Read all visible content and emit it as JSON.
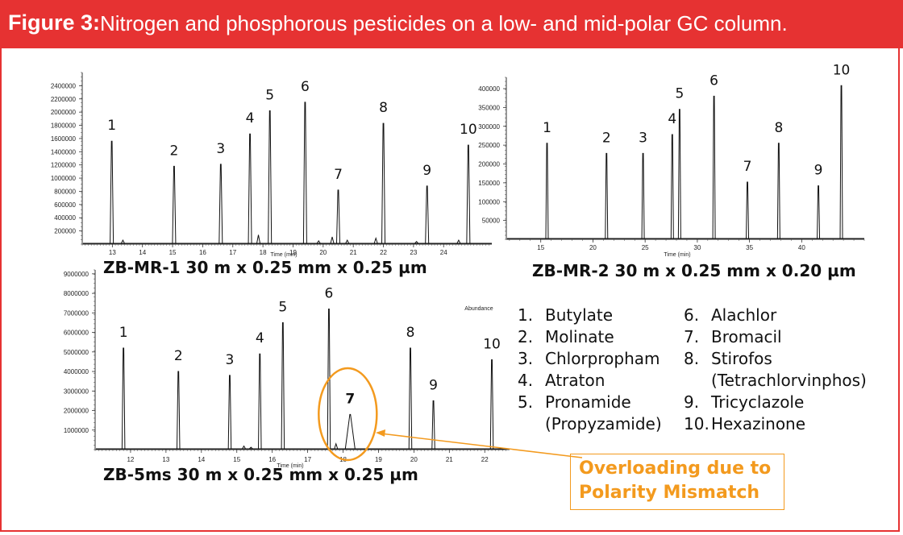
{
  "header": {
    "label": "Figure 3:",
    "caption": "Nitrogen and phosphorous pesticides on a low- and mid-polar GC column."
  },
  "colors": {
    "header_bg": "#e63232",
    "accent_orange": "#f39a1e",
    "trace": "#111111"
  },
  "chart_data": [
    {
      "type": "line",
      "title": "ZB-MR-1 30 m x 0.25 mm x 0.25 µm",
      "xlabel": "Time (min)",
      "ylabel": "",
      "xlim": [
        12.0,
        25.6
      ],
      "ylim": [
        0,
        2600000
      ],
      "xticks": [
        13,
        14,
        15,
        16,
        17,
        18,
        19,
        20,
        21,
        22,
        23,
        24
      ],
      "yticks": [
        200000,
        400000,
        600000,
        800000,
        1000000,
        1200000,
        1400000,
        1600000,
        1800000,
        2000000,
        2200000,
        2400000
      ],
      "peaks": [
        {
          "label": "1",
          "x": 12.98,
          "y": 1560000
        },
        {
          "label": "2",
          "x": 15.05,
          "y": 1180000
        },
        {
          "label": "3",
          "x": 16.6,
          "y": 1210000
        },
        {
          "label": "4",
          "x": 17.57,
          "y": 1670000
        },
        {
          "label": "5",
          "x": 18.23,
          "y": 2020000
        },
        {
          "label": "6",
          "x": 19.4,
          "y": 2150000
        },
        {
          "label": "7",
          "x": 20.5,
          "y": 820000
        },
        {
          "label": "8",
          "x": 22.0,
          "y": 1830000
        },
        {
          "label": "9",
          "x": 23.45,
          "y": 880000
        },
        {
          "label": "10",
          "x": 24.82,
          "y": 1500000
        }
      ],
      "minor_peaks": [
        {
          "x": 13.35,
          "y": 60000
        },
        {
          "x": 17.85,
          "y": 140000
        },
        {
          "x": 19.85,
          "y": 50000
        },
        {
          "x": 20.3,
          "y": 110000
        },
        {
          "x": 20.8,
          "y": 60000
        },
        {
          "x": 21.75,
          "y": 90000
        },
        {
          "x": 23.1,
          "y": 40000
        },
        {
          "x": 24.5,
          "y": 60000
        }
      ]
    },
    {
      "type": "line",
      "title": "ZB-MR-2 30 m x 0.25 mm x 0.20 µm",
      "xlabel": "Time (min)",
      "ylabel": "",
      "xlim": [
        11.7,
        46.0
      ],
      "ylim": [
        0,
        430000
      ],
      "xticks": [
        15,
        20,
        25,
        30,
        35,
        40
      ],
      "yticks": [
        50000,
        100000,
        150000,
        200000,
        250000,
        300000,
        350000,
        400000
      ],
      "peaks": [
        {
          "label": "1",
          "x": 15.6,
          "y": 255000
        },
        {
          "label": "2",
          "x": 21.3,
          "y": 228000
        },
        {
          "label": "3",
          "x": 24.8,
          "y": 228000
        },
        {
          "label": "4",
          "x": 27.6,
          "y": 278000
        },
        {
          "label": "5",
          "x": 28.3,
          "y": 345000
        },
        {
          "label": "6",
          "x": 31.6,
          "y": 380000
        },
        {
          "label": "7",
          "x": 34.8,
          "y": 152000
        },
        {
          "label": "8",
          "x": 37.8,
          "y": 255000
        },
        {
          "label": "9",
          "x": 41.6,
          "y": 142000
        },
        {
          "label": "10",
          "x": 43.8,
          "y": 408000
        }
      ],
      "minor_peaks": []
    },
    {
      "type": "line",
      "title": "ZB-5ms 30 m x 0.25 mm x 0.25 µm",
      "xlabel": "Time (min)",
      "ylabel": "Abundance",
      "xlim": [
        11.0,
        22.7
      ],
      "ylim": [
        0,
        9200000
      ],
      "xticks": [
        12,
        13,
        14,
        15,
        16,
        17,
        18,
        19,
        20,
        21,
        22
      ],
      "yticks": [
        1000000,
        2000000,
        3000000,
        4000000,
        5000000,
        6000000,
        7000000,
        8000000,
        9000000
      ],
      "peaks": [
        {
          "label": "1",
          "x": 11.8,
          "y": 5200000
        },
        {
          "label": "2",
          "x": 13.35,
          "y": 4000000
        },
        {
          "label": "3",
          "x": 14.8,
          "y": 3800000
        },
        {
          "label": "4",
          "x": 15.65,
          "y": 4900000
        },
        {
          "label": "5",
          "x": 16.3,
          "y": 6500000
        },
        {
          "label": "6",
          "x": 17.6,
          "y": 7200000
        },
        {
          "label": "7",
          "x": 18.2,
          "y": 1800000
        },
        {
          "label": "8",
          "x": 19.9,
          "y": 5200000
        },
        {
          "label": "9",
          "x": 20.55,
          "y": 2500000
        },
        {
          "label": "10",
          "x": 22.2,
          "y": 4600000
        }
      ],
      "minor_peaks": [
        {
          "x": 15.2,
          "y": 180000
        },
        {
          "x": 15.4,
          "y": 120000
        },
        {
          "x": 17.8,
          "y": 300000
        }
      ]
    }
  ],
  "legend": {
    "items": [
      {
        "num": "1.",
        "name": "Butylate"
      },
      {
        "num": "2.",
        "name": "Molinate"
      },
      {
        "num": "3.",
        "name": "Chlorpropham"
      },
      {
        "num": "4.",
        "name": "Atraton"
      },
      {
        "num": "5.",
        "name": "Pronamide",
        "sub": "(Propyzamide)"
      },
      {
        "num": "6.",
        "name": "Alachlor"
      },
      {
        "num": "7.",
        "name": "Bromacil"
      },
      {
        "num": "8.",
        "name": "Stirofos",
        "sub": "(Tetrachlorvinphos)"
      },
      {
        "num": "9.",
        "name": "Tricyclazole"
      },
      {
        "num": "10.",
        "name": "Hexazinone"
      }
    ]
  },
  "callout": {
    "line1": "Overloading due to",
    "line2": "Polarity Mismatch"
  }
}
